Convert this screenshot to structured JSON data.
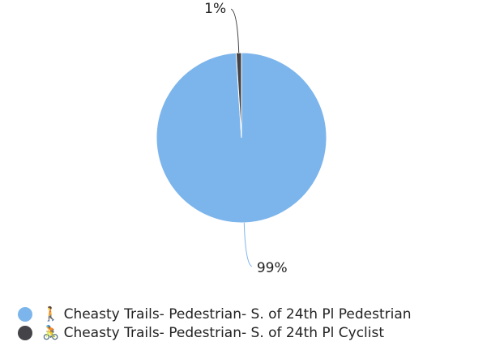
{
  "chart_data": {
    "type": "pie",
    "categories": [
      "🚶 Cheasty Trails- Pedestrian- S. of 24th Pl Pedestrian",
      "🚴 Cheasty Trails- Pedestrian- S. of 24th Pl Cyclist"
    ],
    "values": [
      99,
      1
    ],
    "value_labels": [
      "99%",
      "1%"
    ],
    "colors": [
      "#7cb5ec",
      "#434348"
    ],
    "legend": "bottom-left"
  }
}
